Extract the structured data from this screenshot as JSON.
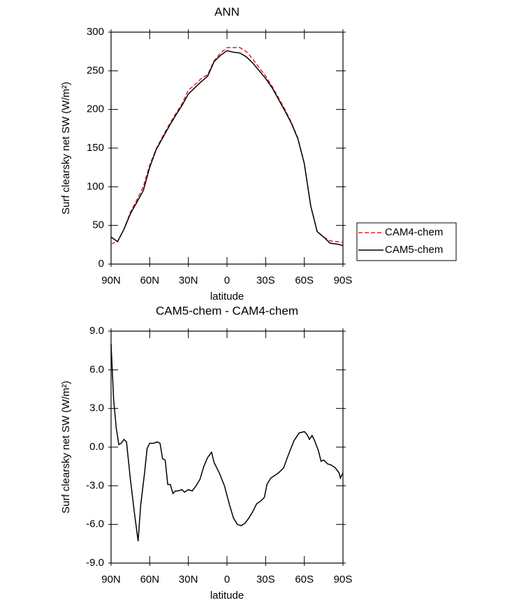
{
  "chart_data": [
    {
      "type": "line",
      "title": "ANN",
      "x_label": "latitude",
      "y_label": "Surf clearsky net SW (W/m²)",
      "x": [
        90,
        85,
        80,
        75,
        70,
        65,
        60,
        55,
        50,
        45,
        40,
        35,
        30,
        25,
        20,
        15,
        10,
        5,
        0,
        -5,
        -10,
        -15,
        -20,
        -25,
        -30,
        -35,
        -40,
        -45,
        -50,
        -55,
        -60,
        -65,
        -70,
        -75,
        -80,
        -85,
        -90
      ],
      "series": [
        {
          "name": "CAM4-chem",
          "color": "#e8202a",
          "dashed": true,
          "values": [
            26,
            29,
            45,
            67,
            83,
            100,
            128,
            149,
            165,
            180,
            194,
            207,
            225,
            232,
            240,
            245,
            263,
            273,
            280,
            280,
            280,
            275,
            265,
            254,
            243,
            230,
            215,
            200,
            183,
            163,
            130,
            75,
            42,
            35,
            30,
            29,
            28
          ]
        },
        {
          "name": "CAM5-chem",
          "color": "#000000",
          "dashed": false,
          "values": [
            35,
            29,
            45,
            65,
            80,
            95,
            125,
            148,
            163,
            178,
            192,
            205,
            220,
            228,
            236,
            243,
            262,
            270,
            276,
            274,
            273,
            268,
            260,
            250,
            240,
            228,
            213,
            198,
            182,
            162,
            130,
            75,
            42,
            35,
            27,
            26,
            24
          ]
        }
      ],
      "xlim": [
        90,
        -90
      ],
      "xticks": [
        {
          "value": 90,
          "label": "90N"
        },
        {
          "value": 60,
          "label": "60N"
        },
        {
          "value": 30,
          "label": "30N"
        },
        0,
        {
          "value": -30,
          "label": "30S"
        },
        {
          "value": -60,
          "label": "60S"
        },
        {
          "value": -90,
          "label": "90S"
        }
      ],
      "ylim": [
        0,
        300
      ],
      "yticks": [
        0,
        50,
        100,
        150,
        200,
        250,
        300
      ],
      "legend": "right"
    },
    {
      "type": "line",
      "title": "CAM5-chem - CAM4-chem",
      "x_label": "latitude",
      "y_label": "Surf clearsky net SW (W/m²)",
      "x": [
        90,
        88,
        86,
        84,
        82,
        80,
        78,
        75,
        72,
        69,
        67,
        64,
        62,
        60,
        57,
        54,
        52,
        50,
        48,
        46,
        44,
        42,
        40,
        38,
        35,
        33,
        30,
        27,
        24,
        21,
        18,
        15,
        12,
        10,
        6,
        2,
        -2,
        -5,
        -8,
        -11,
        -14,
        -17,
        -20,
        -23,
        -26,
        -29,
        -31,
        -34,
        -37,
        -40,
        -44,
        -48,
        -52,
        -56,
        -60,
        -62,
        -64,
        -66,
        -68,
        -71,
        -73,
        -75,
        -78,
        -81,
        -84,
        -87,
        -88,
        -90
      ],
      "series": [
        {
          "color": "#000000",
          "dashed": false,
          "values": [
            8.0,
            3.7,
            1.5,
            0.2,
            0.3,
            0.6,
            0.4,
            -2.5,
            -5.0,
            -7.3,
            -4.5,
            -2.0,
            -0.1,
            0.3,
            0.3,
            0.4,
            0.3,
            -0.9,
            -1.0,
            -2.9,
            -2.9,
            -3.6,
            -3.4,
            -3.4,
            -3.3,
            -3.5,
            -3.3,
            -3.4,
            -3.0,
            -2.5,
            -1.5,
            -0.8,
            -0.4,
            -1.2,
            -2.0,
            -3.0,
            -4.5,
            -5.5,
            -6.0,
            -6.1,
            -5.9,
            -5.5,
            -5.0,
            -4.4,
            -4.2,
            -3.9,
            -2.9,
            -2.4,
            -2.2,
            -2.0,
            -1.6,
            -0.5,
            0.5,
            1.1,
            1.2,
            1.0,
            0.6,
            0.9,
            0.5,
            -0.3,
            -1.1,
            -1.0,
            -1.3,
            -1.4,
            -1.6,
            -2.0,
            -2.4,
            -2.0
          ]
        }
      ],
      "xlim": [
        90,
        -90
      ],
      "xticks": [
        {
          "value": 90,
          "label": "90N"
        },
        {
          "value": 60,
          "label": "60N"
        },
        {
          "value": 30,
          "label": "30N"
        },
        0,
        {
          "value": -30,
          "label": "30S"
        },
        {
          "value": -60,
          "label": "60S"
        },
        {
          "value": -90,
          "label": "90S"
        }
      ],
      "ylim": [
        -9,
        9
      ],
      "yticks": [
        {
          "value": -9,
          "label": "-9.0"
        },
        {
          "value": -6,
          "label": "-6.0"
        },
        {
          "value": -3,
          "label": "-3.0"
        },
        {
          "value": 0,
          "label": "0.0"
        },
        {
          "value": 3,
          "label": "3.0"
        },
        {
          "value": 6,
          "label": "6.0"
        },
        {
          "value": 9,
          "label": "9.0"
        }
      ]
    }
  ]
}
